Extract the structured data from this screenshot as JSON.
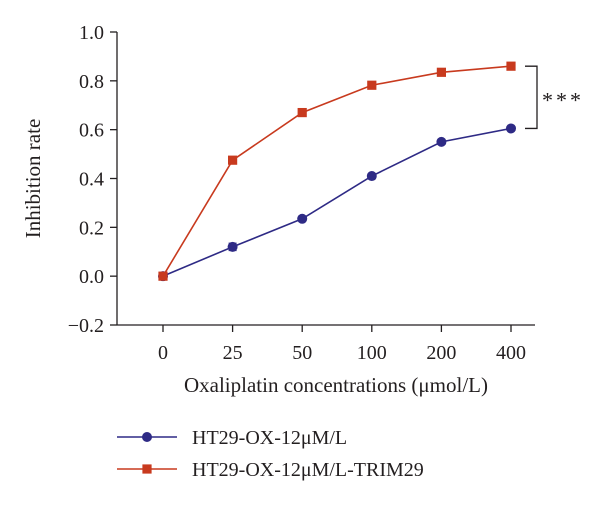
{
  "chart_data": {
    "type": "line",
    "title": "",
    "xlabel": "Oxaliplatin concentrations (μmol/L)",
    "ylabel": "Inhibition rate",
    "categories": [
      "0",
      "25",
      "50",
      "100",
      "200",
      "400"
    ],
    "yticks": [
      "−0.2",
      "0.0",
      "0.2",
      "0.4",
      "0.6",
      "0.8",
      "1.0"
    ],
    "ylim": [
      -0.2,
      1.0
    ],
    "grid": false,
    "legend_position": "bottom-left",
    "series": [
      {
        "name": "HT29-OX-12μM/L",
        "marker": "circle",
        "color": "#2e2a85",
        "values": [
          0.0,
          0.12,
          0.235,
          0.41,
          0.55,
          0.605
        ],
        "errors": [
          0.012,
          0.015,
          0.01,
          0.01,
          0.01,
          0.01
        ]
      },
      {
        "name": "HT29-OX-12μM/L-TRIM29",
        "marker": "square",
        "color": "#c83a1e",
        "values": [
          0.0,
          0.475,
          0.67,
          0.782,
          0.835,
          0.86
        ],
        "errors": [
          0.01,
          0.01,
          0.01,
          0.01,
          0.01,
          0.01
        ]
      }
    ],
    "annotations": [
      {
        "type": "significance_bracket",
        "label": "***",
        "between": "series at 400"
      }
    ]
  }
}
